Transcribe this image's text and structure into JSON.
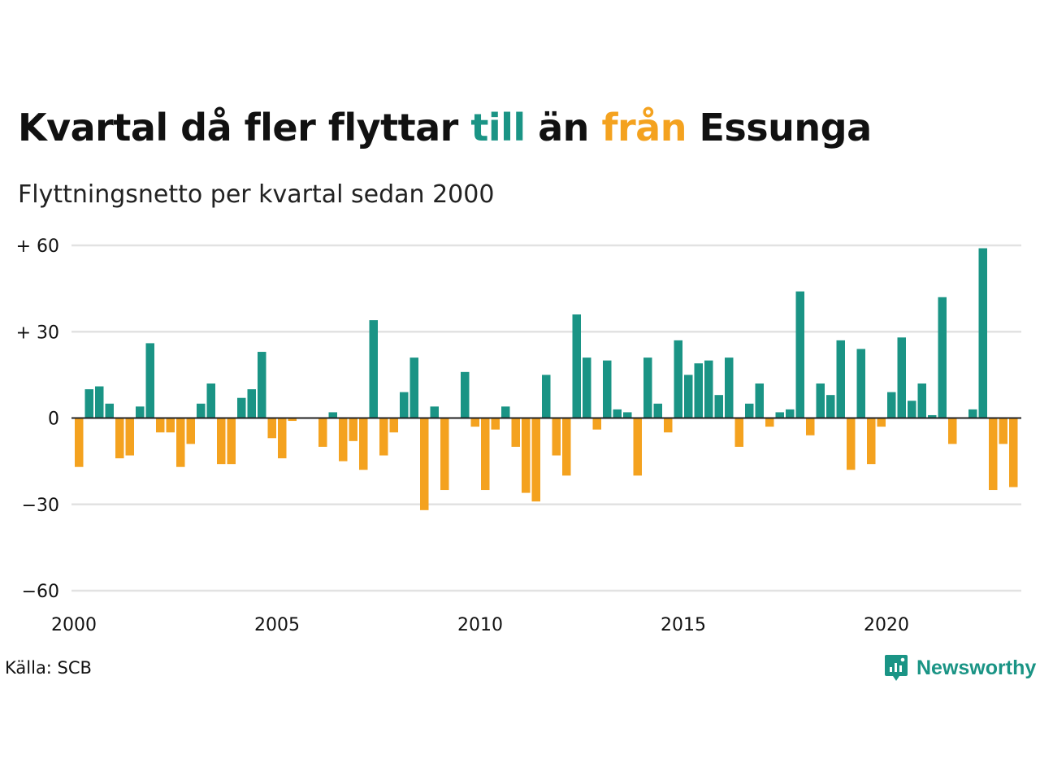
{
  "title": {
    "part1": "Kvartal då fler flyttar ",
    "till": "till",
    "part2": " än ",
    "fran": "från",
    "part3": " Essunga"
  },
  "subtitle": "Flyttningsnetto per kvartal sedan 2000",
  "source": "Källa: SCB",
  "logo": {
    "text": "Newsworthy",
    "icon": "newsworthy-chart-bubble-icon"
  },
  "colors": {
    "positive": "#1a9485",
    "negative": "#f4a21f",
    "grid": "#e2e2e2",
    "text": "#111111"
  },
  "chart_data": {
    "type": "bar",
    "xlabel": "",
    "ylabel": "",
    "ylim": [
      -60,
      60
    ],
    "x_start_year": 2000,
    "yticks": [
      {
        "value": 60,
        "label": "+ 60"
      },
      {
        "value": 30,
        "label": "+ 30"
      },
      {
        "value": 0,
        "label": "0"
      },
      {
        "value": -30,
        "label": "−30"
      },
      {
        "value": -60,
        "label": "−60"
      }
    ],
    "xticks": [
      {
        "year": 2000,
        "label": "2000"
      },
      {
        "year": 2005,
        "label": "2005"
      },
      {
        "year": 2010,
        "label": "2010"
      },
      {
        "year": 2015,
        "label": "2015"
      },
      {
        "year": 2020,
        "label": "2020"
      }
    ],
    "grid": true,
    "legend": "none (colors explained in title)",
    "values": [
      -17,
      10,
      11,
      5,
      -14,
      -13,
      4,
      26,
      -5,
      -5,
      -17,
      -9,
      5,
      12,
      -16,
      -16,
      7,
      10,
      23,
      -7,
      -14,
      -1,
      0,
      0,
      -10,
      2,
      -15,
      -8,
      -18,
      34,
      -13,
      -5,
      9,
      21,
      -32,
      4,
      -25,
      0,
      16,
      -3,
      -25,
      -4,
      4,
      -10,
      -26,
      -29,
      15,
      -13,
      -20,
      36,
      21,
      -4,
      20,
      3,
      2,
      -20,
      21,
      5,
      -5,
      27,
      15,
      19,
      20,
      8,
      21,
      -10,
      5,
      12,
      -3,
      2,
      3,
      44,
      -6,
      12,
      8,
      27,
      -18,
      24,
      -16,
      -3,
      9,
      28,
      6,
      12,
      1,
      42,
      -9,
      0,
      3,
      59,
      -25,
      -9,
      -24
    ]
  }
}
